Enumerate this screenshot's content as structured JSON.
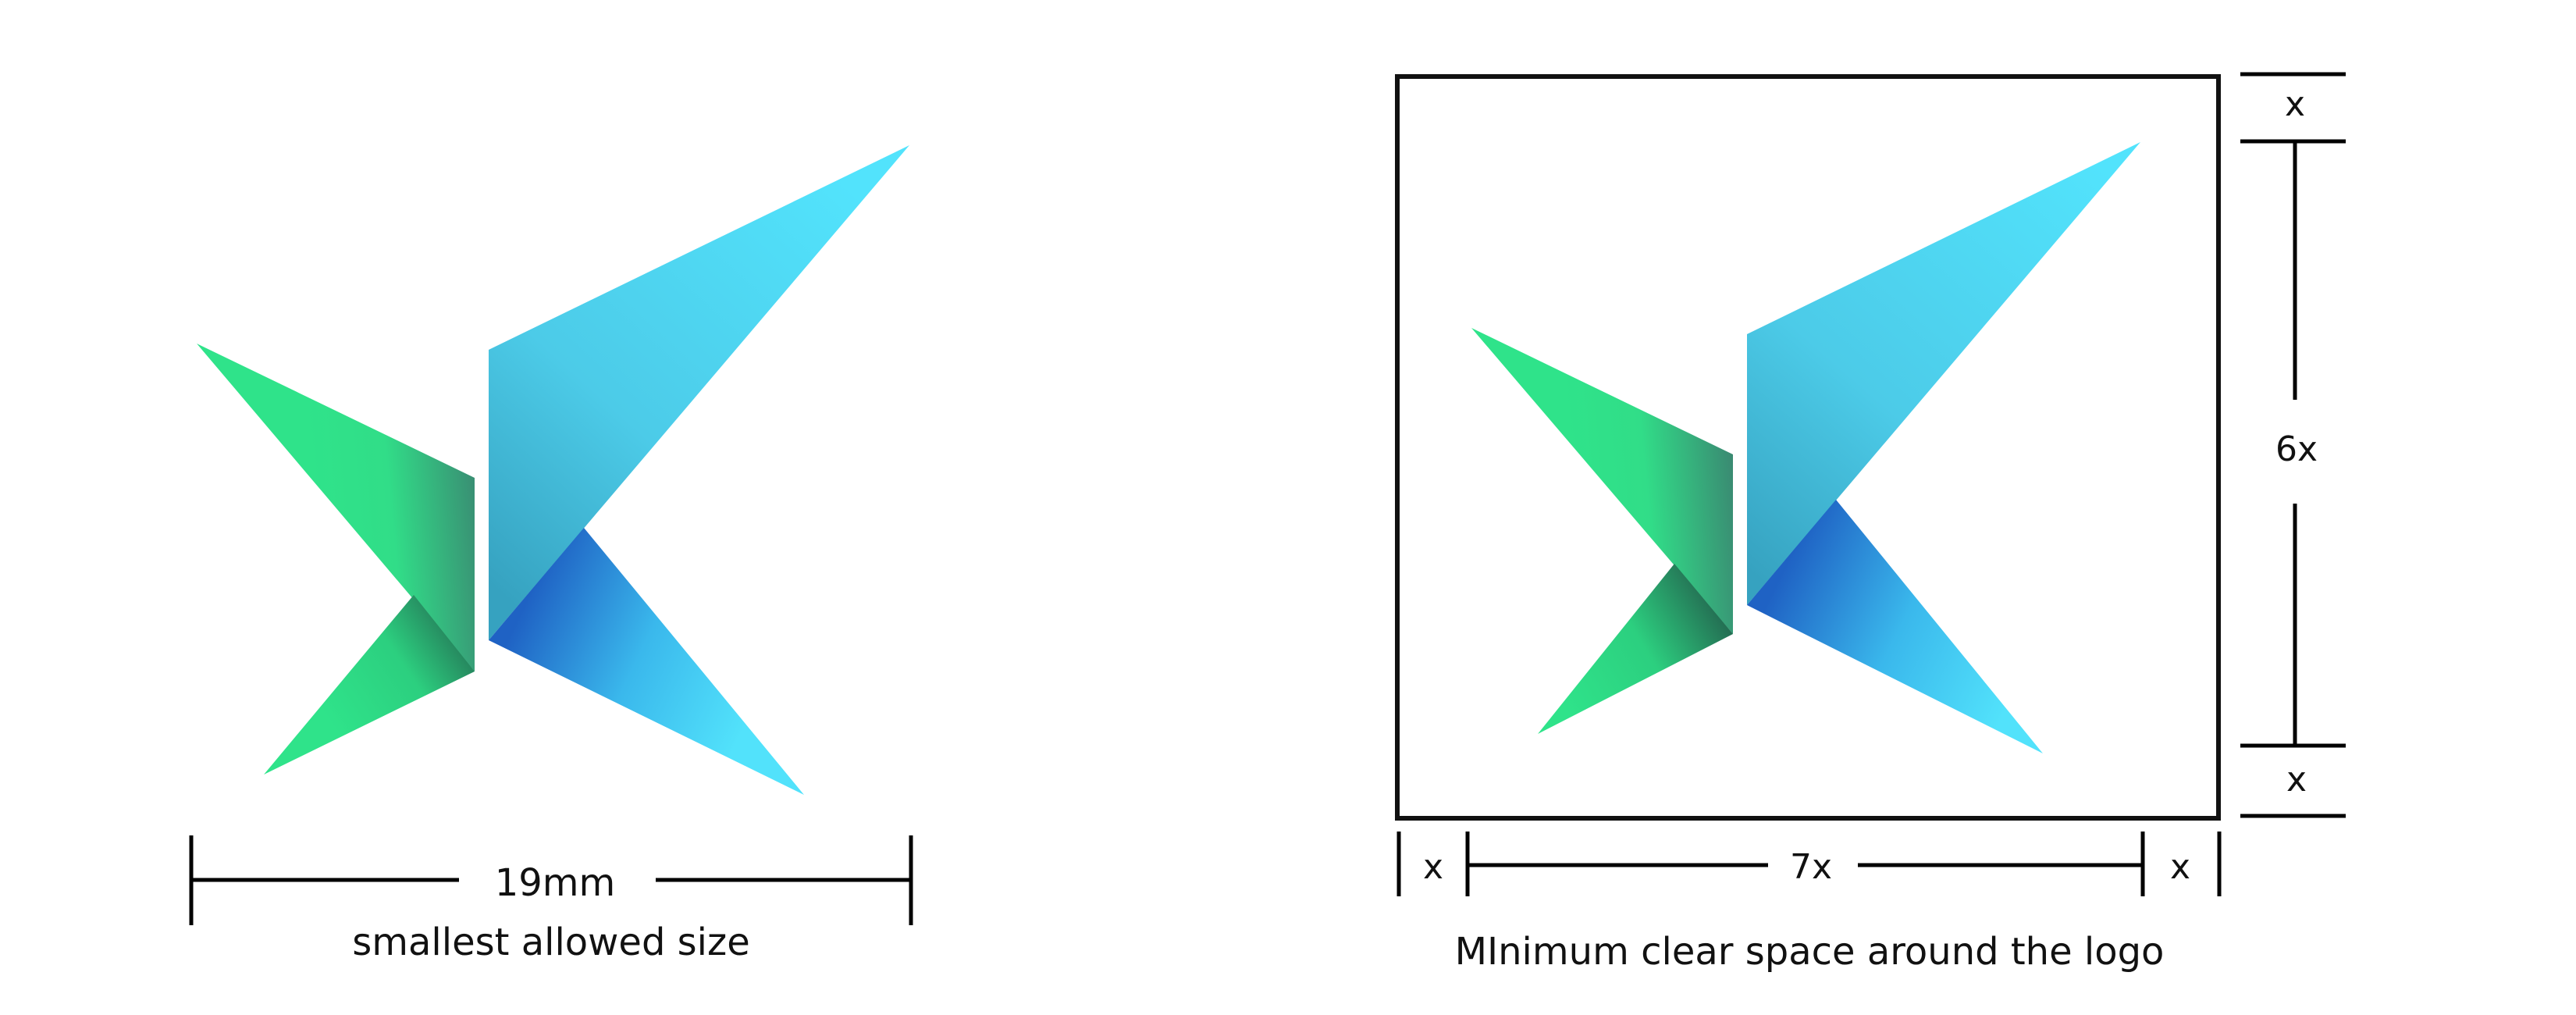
{
  "left_panel": {
    "width_label": "19mm",
    "caption": "smallest allowed size"
  },
  "right_panel": {
    "top_margin_label": "x",
    "height_label": "6x",
    "bottom_margin_label": "x",
    "left_margin_label": "x",
    "width_label": "7x",
    "right_margin_label": "x",
    "caption": "MInimum clear space around the logo"
  },
  "colors": {
    "green_light": "#2fe38a",
    "green_dark": "#2a8f6c",
    "blue_light": "#51e1fb",
    "blue_mid": "#3aa8c6",
    "blue_dark": "#1f6fc8",
    "line": "#000000"
  }
}
